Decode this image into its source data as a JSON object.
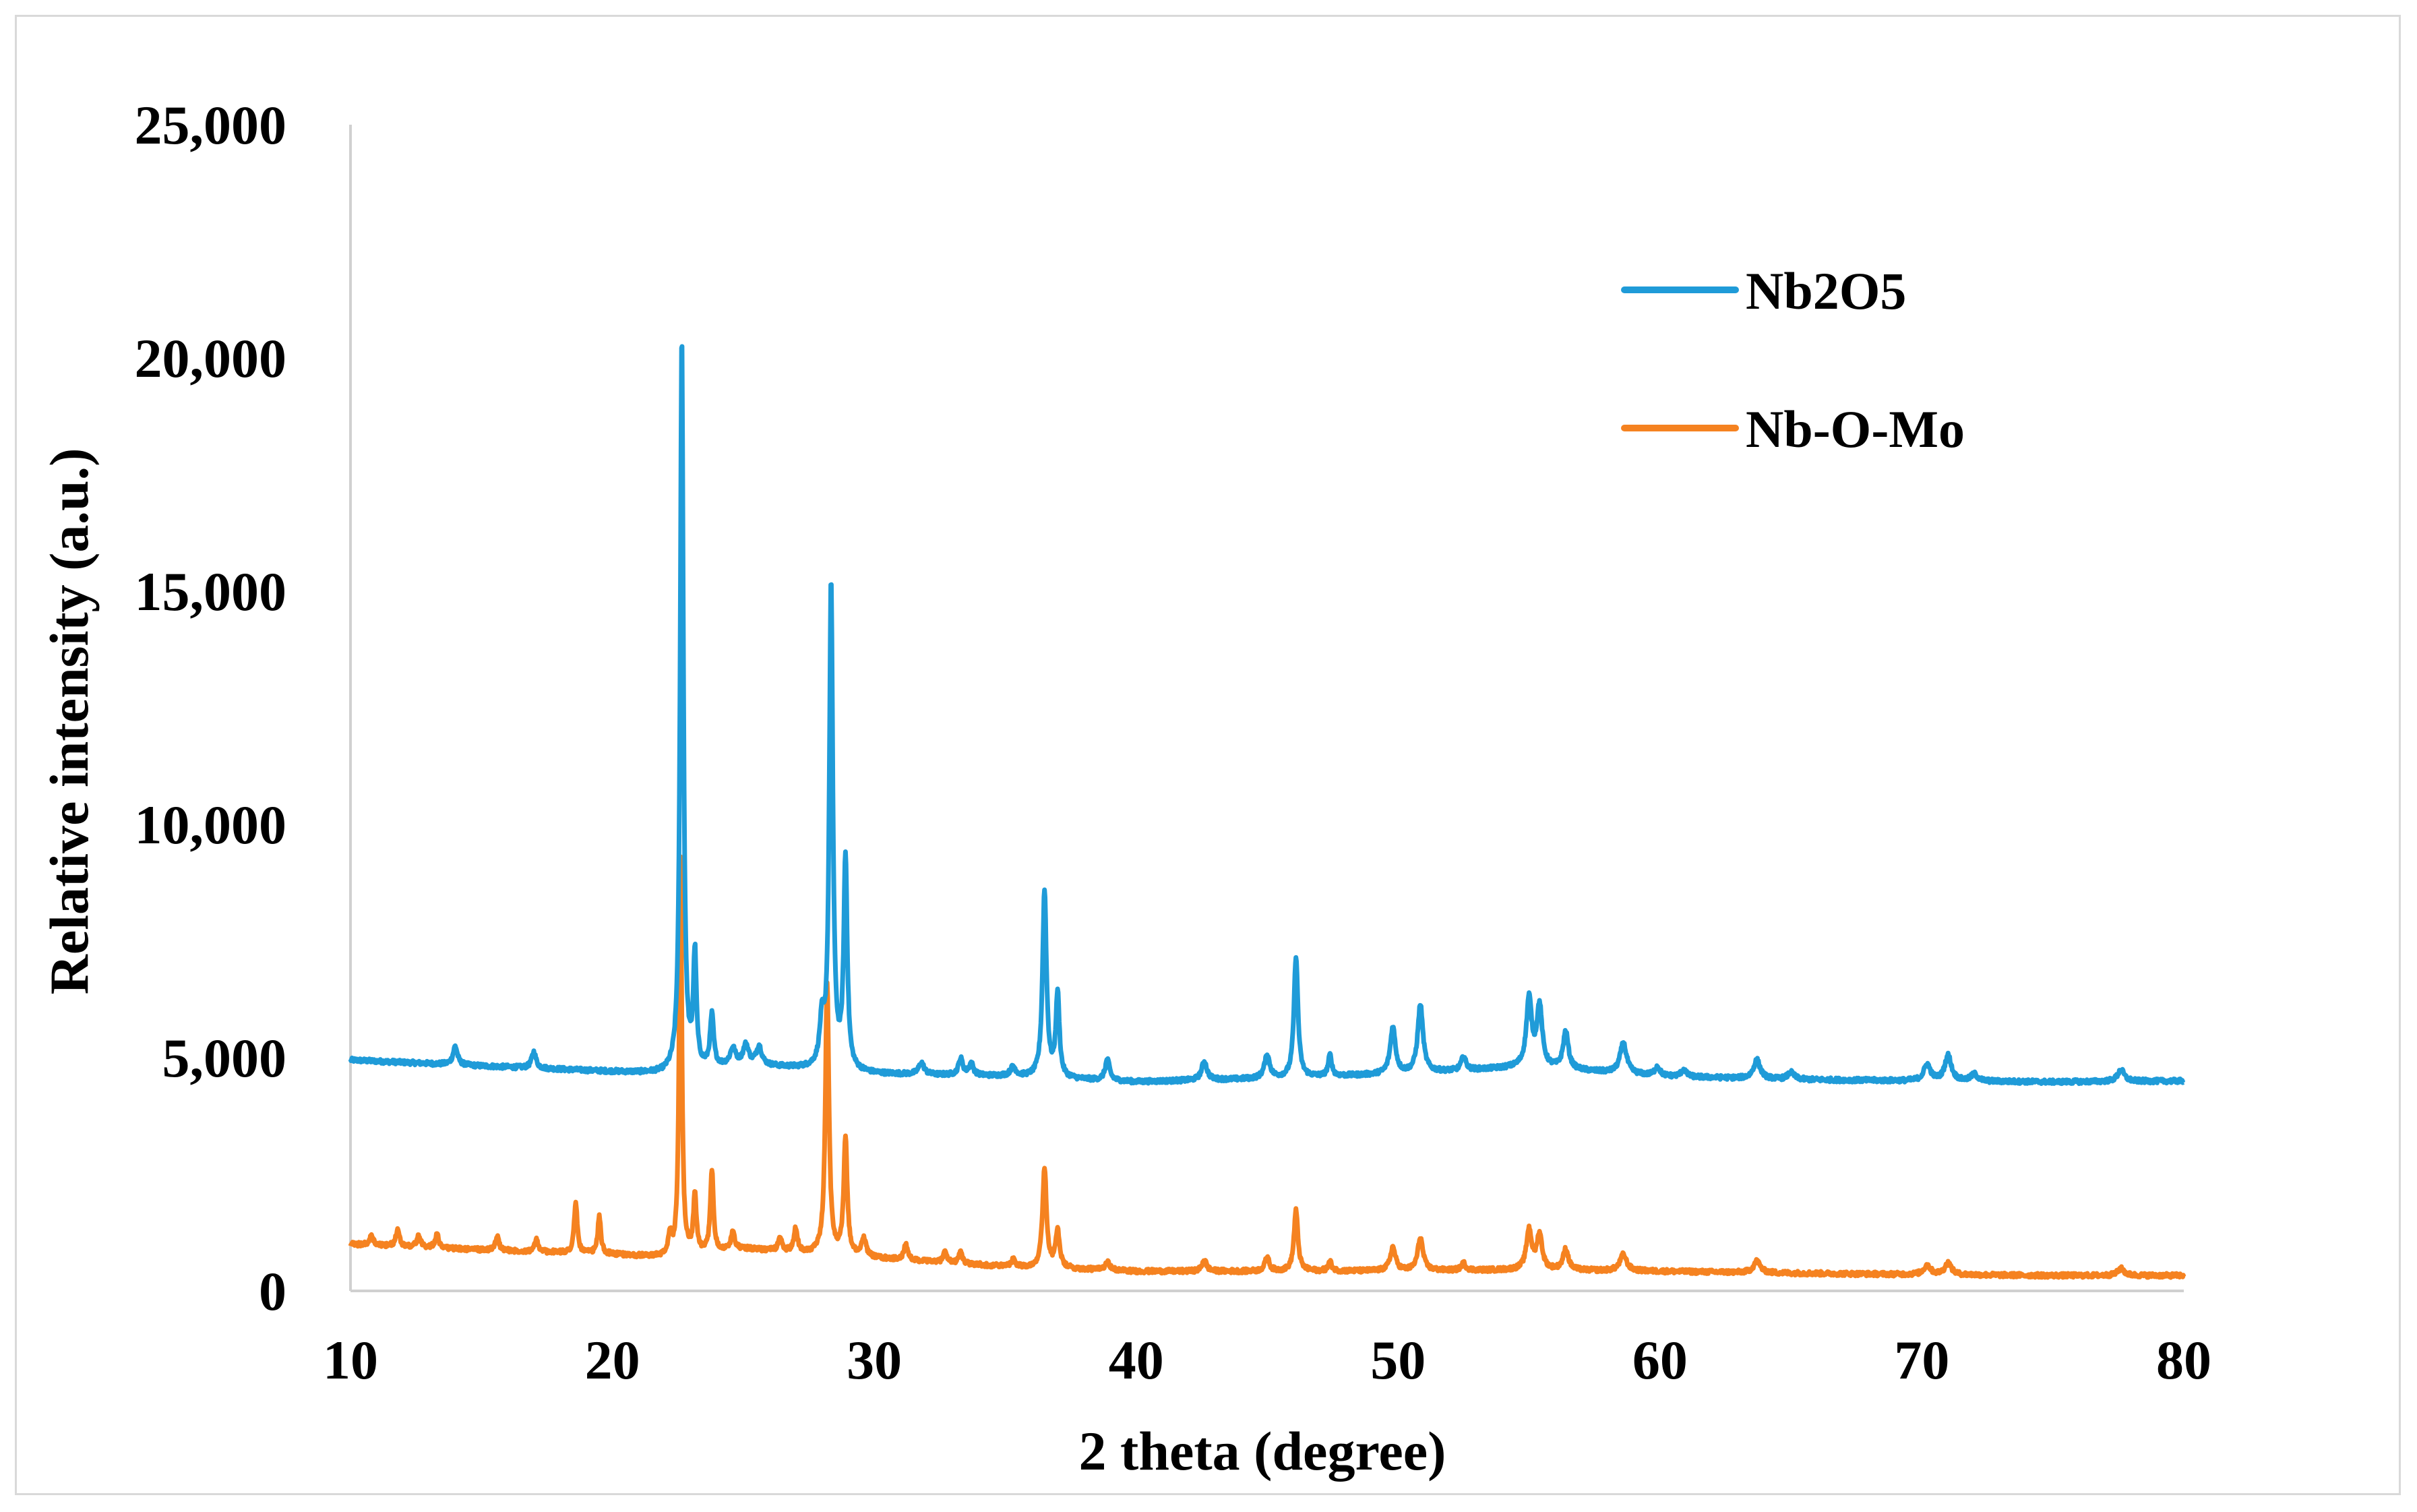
{
  "chart_data": {
    "type": "line",
    "title": "",
    "xlabel": "2 theta (degree)",
    "ylabel": "Relative intensity (a.u.)",
    "xlim": [
      10,
      80
    ],
    "ylim": [
      0,
      25000
    ],
    "x_ticks": [
      "10",
      "20",
      "30",
      "40",
      "50",
      "60",
      "70",
      "80"
    ],
    "x_tick_values": [
      10,
      20,
      30,
      40,
      50,
      60,
      70,
      80
    ],
    "y_ticks": [
      "0",
      "5,000",
      "10,000",
      "15,000",
      "20,000",
      "25,000"
    ],
    "y_tick_values": [
      0,
      5000,
      10000,
      15000,
      20000,
      25000
    ],
    "grid": false,
    "legend_position": "top-right",
    "series": [
      {
        "name": "Nb2O5",
        "color": "#1f9bd8",
        "baseline": [
          [
            10,
            4950
          ],
          [
            15,
            4820
          ],
          [
            20,
            4700
          ],
          [
            22,
            4650
          ],
          [
            25,
            4850
          ],
          [
            30,
            4650
          ],
          [
            35,
            4600
          ],
          [
            37,
            4550
          ],
          [
            40,
            4480
          ],
          [
            45,
            4550
          ],
          [
            50,
            4650
          ],
          [
            55,
            4800
          ],
          [
            60,
            4600
          ],
          [
            65,
            4530
          ],
          [
            70,
            4500
          ],
          [
            75,
            4480
          ],
          [
            80,
            4500
          ]
        ],
        "peaks": [
          [
            14.0,
            400,
            0.1
          ],
          [
            17.0,
            350,
            0.1
          ],
          [
            22.65,
            15800,
            0.07
          ],
          [
            23.15,
            2400,
            0.07
          ],
          [
            23.8,
            1100,
            0.08
          ],
          [
            24.6,
            350,
            0.12
          ],
          [
            25.1,
            400,
            0.12
          ],
          [
            25.6,
            400,
            0.12
          ],
          [
            28.0,
            900,
            0.1
          ],
          [
            28.35,
            10400,
            0.08
          ],
          [
            28.9,
            4500,
            0.08
          ],
          [
            31.8,
            250,
            0.12
          ],
          [
            33.3,
            350,
            0.1
          ],
          [
            33.7,
            250,
            0.1
          ],
          [
            35.3,
            200,
            0.12
          ],
          [
            36.5,
            4000,
            0.09
          ],
          [
            37.0,
            1800,
            0.08
          ],
          [
            38.9,
            450,
            0.1
          ],
          [
            42.6,
            400,
            0.12
          ],
          [
            45.0,
            500,
            0.12
          ],
          [
            46.1,
            2600,
            0.09
          ],
          [
            47.4,
            450,
            0.08
          ],
          [
            49.8,
            1000,
            0.12
          ],
          [
            50.85,
            1450,
            0.12
          ],
          [
            52.5,
            300,
            0.1
          ],
          [
            55.0,
            1450,
            0.12
          ],
          [
            55.4,
            1300,
            0.12
          ],
          [
            56.4,
            800,
            0.12
          ],
          [
            58.6,
            650,
            0.15
          ],
          [
            59.9,
            200,
            0.12
          ],
          [
            60.9,
            150,
            0.12
          ],
          [
            63.7,
            400,
            0.15
          ],
          [
            65.0,
            150,
            0.15
          ],
          [
            70.2,
            350,
            0.15
          ],
          [
            71.0,
            550,
            0.15
          ],
          [
            72.0,
            150,
            0.15
          ],
          [
            77.6,
            250,
            0.15
          ]
        ]
      },
      {
        "name": "Nb-O-Mo",
        "color": "#f58220",
        "baseline": [
          [
            10,
            1000
          ],
          [
            15,
            880
          ],
          [
            20,
            780
          ],
          [
            22,
            720
          ],
          [
            25,
            900
          ],
          [
            30,
            700
          ],
          [
            35,
            520
          ],
          [
            40,
            420
          ],
          [
            45,
            420
          ],
          [
            50,
            430
          ],
          [
            55,
            450
          ],
          [
            60,
            420
          ],
          [
            65,
            380
          ],
          [
            70,
            350
          ],
          [
            75,
            330
          ],
          [
            80,
            330
          ]
        ],
        "peaks": [
          [
            10.8,
            200,
            0.08
          ],
          [
            11.8,
            350,
            0.08
          ],
          [
            12.6,
            250,
            0.08
          ],
          [
            13.3,
            300,
            0.08
          ],
          [
            15.6,
            300,
            0.08
          ],
          [
            17.1,
            250,
            0.08
          ],
          [
            18.6,
            1100,
            0.07
          ],
          [
            19.5,
            800,
            0.07
          ],
          [
            22.2,
            450,
            0.07
          ],
          [
            22.6,
            8500,
            0.06
          ],
          [
            23.15,
            1200,
            0.07
          ],
          [
            23.8,
            1750,
            0.07
          ],
          [
            24.6,
            400,
            0.08
          ],
          [
            26.4,
            300,
            0.08
          ],
          [
            27.0,
            500,
            0.08
          ],
          [
            28.2,
            5800,
            0.08
          ],
          [
            28.9,
            2500,
            0.08
          ],
          [
            29.6,
            400,
            0.1
          ],
          [
            31.2,
            350,
            0.08
          ],
          [
            32.7,
            250,
            0.08
          ],
          [
            33.3,
            250,
            0.08
          ],
          [
            35.3,
            150,
            0.1
          ],
          [
            36.5,
            2150,
            0.09
          ],
          [
            37.0,
            800,
            0.09
          ],
          [
            38.9,
            200,
            0.1
          ],
          [
            42.6,
            250,
            0.1
          ],
          [
            45.0,
            300,
            0.1
          ],
          [
            46.1,
            1300,
            0.09
          ],
          [
            47.4,
            200,
            0.08
          ],
          [
            49.8,
            500,
            0.12
          ],
          [
            50.85,
            700,
            0.12
          ],
          [
            52.5,
            150,
            0.1
          ],
          [
            55.0,
            850,
            0.12
          ],
          [
            55.4,
            750,
            0.12
          ],
          [
            56.4,
            450,
            0.12
          ],
          [
            58.6,
            350,
            0.15
          ],
          [
            63.7,
            250,
            0.15
          ],
          [
            70.2,
            200,
            0.15
          ],
          [
            71.0,
            250,
            0.15
          ],
          [
            77.6,
            150,
            0.15
          ]
        ]
      }
    ]
  }
}
